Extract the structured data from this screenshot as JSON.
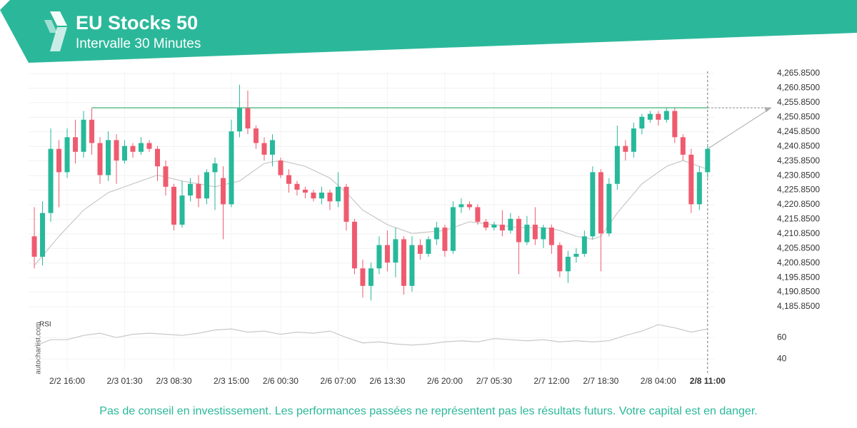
{
  "chart_data": {
    "type": "candlestick",
    "title": "EU Stocks 50",
    "subtitle": "Intervalle 30 Minutes",
    "watermark": "autochartist.com",
    "disclaimer": "Pas de conseil en investissement. Les performances passées ne représentent pas les résultats futurs. Votre capital est en danger.",
    "up_color": "#26b99a",
    "down_color": "#ef5b6e",
    "open": [
      4210,
      4203,
      4218,
      4240,
      4232,
      4244,
      4239,
      4250,
      4242,
      4231,
      4243,
      4236,
      4241,
      4239,
      4242,
      4240,
      4234,
      4227,
      4214,
      4224,
      4228,
      4223,
      4232,
      4230,
      4221,
      4246,
      4254,
      4247,
      4242,
      4238,
      4236,
      4231,
      4228,
      4226,
      4225,
      4223,
      4225,
      4222,
      4227,
      4215,
      4199,
      4193,
      4199,
      4207,
      4201,
      4209,
      4193,
      4207,
      4204,
      4209,
      4213,
      4205,
      4220,
      4221,
      4220,
      4215,
      4213,
      4214,
      4212,
      4216,
      4208,
      4214,
      4209,
      4213,
      4207,
      4198,
      4203,
      4204,
      4210,
      4232,
      4211,
      4228,
      4241,
      4239,
      4247,
      4250,
      4252,
      4250,
      4253,
      4244,
      4238,
      4221,
      4232
    ],
    "high": [
      4220,
      4222,
      4247,
      4243,
      4247,
      4250,
      4253,
      4254,
      4244,
      4246,
      4245,
      4243,
      4242,
      4244,
      4243,
      4241,
      4236,
      4228,
      4229,
      4230,
      4231,
      4233,
      4237,
      4234,
      4250,
      4262,
      4260,
      4248,
      4244,
      4245,
      4237,
      4233,
      4229,
      4227,
      4226,
      4227,
      4226,
      4232,
      4228,
      4216,
      4202,
      4201,
      4210,
      4212,
      4213,
      4210,
      4210,
      4209,
      4210,
      4215,
      4214,
      4222,
      4223,
      4222,
      4221,
      4216,
      4215,
      4219,
      4218,
      4217,
      4217,
      4220,
      4214,
      4214,
      4208,
      4205,
      4206,
      4212,
      4234,
      4233,
      4230,
      4248,
      4243,
      4249,
      4252,
      4253,
      4253,
      4254,
      4254,
      4245,
      4240,
      4234,
      4241
    ],
    "low": [
      4199,
      4200,
      4215,
      4220,
      4230,
      4235,
      4237,
      4238,
      4228,
      4229,
      4228,
      4235,
      4237,
      4238,
      4239,
      4229,
      4224,
      4212,
      4213,
      4222,
      4220,
      4221,
      4219,
      4209,
      4220,
      4244,
      4245,
      4240,
      4236,
      4234,
      4230,
      4225,
      4224,
      4223,
      4222,
      4221,
      4219,
      4220,
      4212,
      4197,
      4189,
      4188,
      4197,
      4198,
      4196,
      4190,
      4191,
      4202,
      4203,
      4207,
      4203,
      4204,
      4218,
      4219,
      4214,
      4212,
      4212,
      4210,
      4211,
      4197,
      4207,
      4207,
      4206,
      4204,
      4196,
      4194,
      4201,
      4203,
      4209,
      4198,
      4210,
      4226,
      4236,
      4237,
      4245,
      4249,
      4248,
      4249,
      4242,
      4236,
      4218,
      4219,
      4230
    ],
    "close": [
      4203,
      4218,
      4240,
      4232,
      4244,
      4239,
      4250,
      4242,
      4231,
      4243,
      4236,
      4241,
      4239,
      4242,
      4240,
      4234,
      4227,
      4214,
      4224,
      4228,
      4223,
      4232,
      4235,
      4221,
      4246,
      4254,
      4247,
      4242,
      4238,
      4243,
      4231,
      4228,
      4226,
      4225,
      4223,
      4225,
      4222,
      4227,
      4215,
      4199,
      4193,
      4199,
      4207,
      4201,
      4209,
      4193,
      4207,
      4204,
      4209,
      4213,
      4205,
      4220,
      4221,
      4220,
      4215,
      4213,
      4214,
      4212,
      4216,
      4208,
      4214,
      4209,
      4213,
      4207,
      4198,
      4203,
      4204,
      4210,
      4232,
      4211,
      4228,
      4241,
      4239,
      4247,
      4251,
      4252,
      4250,
      4253,
      4244,
      4238,
      4221,
      4232,
      4240
    ],
    "xlim": [
      -0.7,
      82.8
    ],
    "ylim": [
      4183.4,
      4266.6
    ],
    "xticks": [
      {
        "value": 4,
        "label": "2/2 16:00"
      },
      {
        "value": 11,
        "label": "2/3 01:30"
      },
      {
        "value": 17,
        "label": "2/3 08:30"
      },
      {
        "value": 24,
        "label": "2/3 15:00"
      },
      {
        "value": 30,
        "label": "2/6 00:30"
      },
      {
        "value": 37,
        "label": "2/6 07:00"
      },
      {
        "value": 43,
        "label": "2/6 13:30"
      },
      {
        "value": 50,
        "label": "2/6 20:00"
      },
      {
        "value": 56,
        "label": "2/7 05:30"
      },
      {
        "value": 63,
        "label": "2/7 12:00"
      },
      {
        "value": 69,
        "label": "2/7 18:30"
      },
      {
        "value": 76,
        "label": "2/8 04:00"
      },
      {
        "value": 82,
        "label": "2/8 11:00"
      }
    ],
    "yticks": [
      {
        "value": 4265.85,
        "label": "4,265.8500"
      },
      {
        "value": 4260.85,
        "label": "4,260.8500"
      },
      {
        "value": 4255.85,
        "label": "4,255.8500"
      },
      {
        "value": 4250.85,
        "label": "4,250.8500"
      },
      {
        "value": 4245.85,
        "label": "4,245.8500"
      },
      {
        "value": 4240.85,
        "label": "4,240.8500"
      },
      {
        "value": 4235.85,
        "label": "4,235.8500"
      },
      {
        "value": 4230.85,
        "label": "4,230.8500"
      },
      {
        "value": 4225.85,
        "label": "4,225.8500"
      },
      {
        "value": 4220.85,
        "label": "4,220.8500"
      },
      {
        "value": 4215.85,
        "label": "4,215.8500"
      },
      {
        "value": 4210.85,
        "label": "4,210.8500"
      },
      {
        "value": 4205.85,
        "label": "4,205.8500"
      },
      {
        "value": 4200.85,
        "label": "4,200.8500"
      },
      {
        "value": 4195.85,
        "label": "4,195.8500"
      },
      {
        "value": 4190.85,
        "label": "4,190.8500"
      },
      {
        "value": 4185.85,
        "label": "4,185.8500"
      }
    ],
    "grid": true,
    "resistance": {
      "start": 7,
      "value": 4254.1,
      "color": "#5dbf8a"
    },
    "moving_average": {
      "color": "#c8c8c8",
      "x": [
        0,
        3,
        6,
        9,
        12,
        15,
        18,
        20,
        22,
        25,
        28,
        30,
        33,
        36,
        38,
        40,
        43,
        46,
        50,
        53,
        56,
        59,
        62,
        64,
        66,
        68,
        69,
        71,
        74,
        77,
        79,
        82
      ],
      "values": [
        4200,
        4210,
        4219,
        4225,
        4228,
        4231,
        4229,
        4228,
        4227,
        4229,
        4235,
        4236,
        4234,
        4230,
        4225,
        4219,
        4214,
        4211,
        4212,
        4215,
        4214,
        4213,
        4213,
        4212,
        4210,
        4209,
        4210,
        4218,
        4228,
        4234,
        4236,
        4233
      ]
    },
    "rsi": {
      "label": "RSI",
      "color": "#c8c8c8",
      "ylim": [
        29,
        78
      ],
      "yticks": [
        40,
        60
      ],
      "x": [
        0,
        2,
        4,
        6,
        8,
        10,
        12,
        14,
        16,
        18,
        20,
        22,
        24,
        26,
        28,
        30,
        32,
        34,
        36,
        38,
        40,
        42,
        44,
        46,
        48,
        50,
        52,
        54,
        56,
        58,
        60,
        62,
        64,
        66,
        68,
        70,
        72,
        74,
        76,
        78,
        80,
        82
      ],
      "values": [
        52,
        58,
        58,
        62,
        64,
        60,
        63,
        64,
        63,
        62,
        64,
        67,
        68,
        65,
        66,
        63,
        65,
        64,
        66,
        60,
        55,
        56,
        54,
        53,
        54,
        56,
        57,
        56,
        59,
        58,
        57,
        58,
        56,
        57,
        56,
        57,
        62,
        66,
        72,
        69,
        65,
        68
      ]
    }
  }
}
